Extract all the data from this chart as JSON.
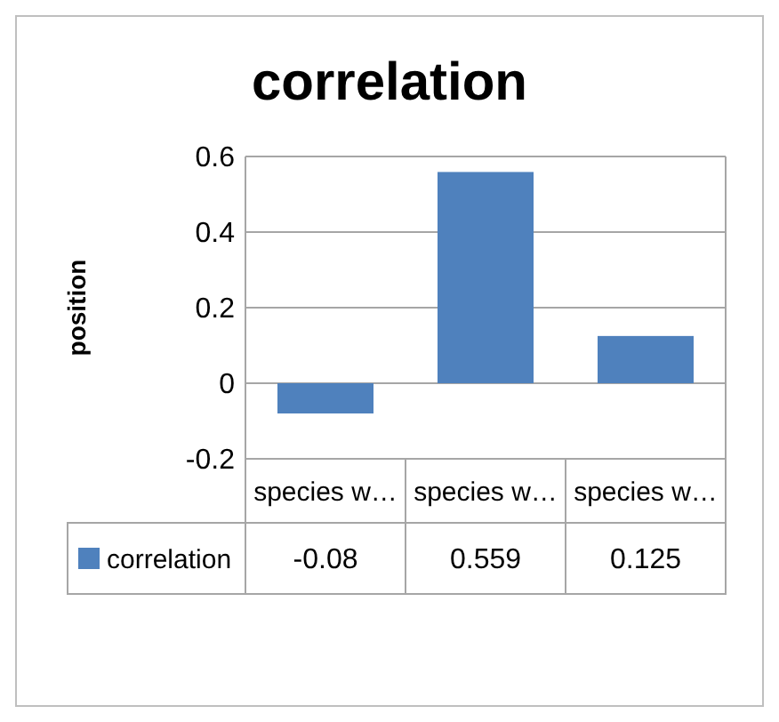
{
  "chart_data": {
    "type": "bar",
    "title": "correlation",
    "ylabel": "position",
    "categories": [
      "species w…",
      "species w…",
      "species w…"
    ],
    "series": [
      {
        "name": "correlation",
        "color": "#4f81bd",
        "values": [
          -0.08,
          0.559,
          0.125
        ]
      }
    ],
    "ylim": [
      -0.2,
      0.6
    ],
    "yticks": [
      -0.2,
      0,
      0.2,
      0.4,
      0.6
    ],
    "grid": "y",
    "legend": "bottom",
    "data_labels": true
  }
}
